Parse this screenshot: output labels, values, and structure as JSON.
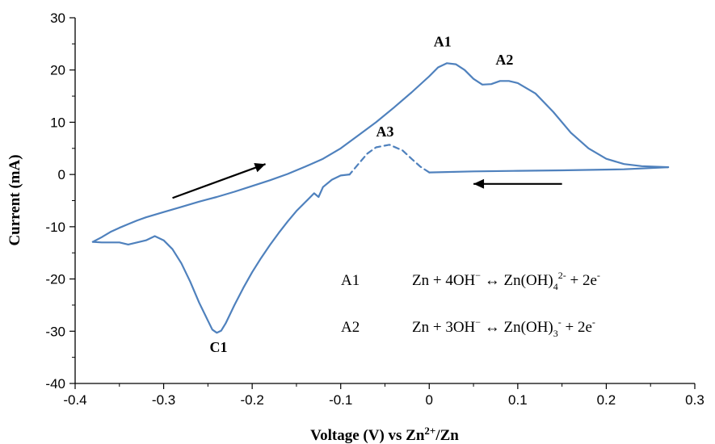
{
  "chart_data": {
    "type": "line",
    "title": "",
    "xlabel": "Voltage (V) vs Zn2+/Zn",
    "xlabel_parts": {
      "main": "Voltage (V) vs Zn",
      "sup": "2+",
      "tail": "/Zn"
    },
    "ylabel": "Current (mA)",
    "xlim": [
      -0.4,
      0.3
    ],
    "ylim": [
      -40,
      30
    ],
    "x_ticks": [
      "-0.4",
      "-0.3",
      "-0.2",
      "-0.1",
      "0",
      "0.1",
      "0.2",
      "0.3"
    ],
    "y_ticks": [
      "30",
      "20",
      "10",
      "0",
      "-10",
      "-20",
      "-30",
      "-40"
    ],
    "grid": false,
    "line_color": "#4f81bd",
    "series": [
      {
        "segment": "anodic sweep",
        "style": "solid",
        "points": [
          [
            -0.38,
            -12.9
          ],
          [
            -0.37,
            -12.0
          ],
          [
            -0.36,
            -11.0
          ],
          [
            -0.35,
            -10.2
          ],
          [
            -0.34,
            -9.5
          ],
          [
            -0.33,
            -8.8
          ],
          [
            -0.32,
            -8.2
          ],
          [
            -0.3,
            -7.2
          ],
          [
            -0.28,
            -6.2
          ],
          [
            -0.26,
            -5.2
          ],
          [
            -0.24,
            -4.3
          ],
          [
            -0.22,
            -3.3
          ],
          [
            -0.2,
            -2.2
          ],
          [
            -0.18,
            -1.1
          ],
          [
            -0.16,
            0.1
          ],
          [
            -0.14,
            1.5
          ],
          [
            -0.12,
            3.0
          ],
          [
            -0.1,
            5.0
          ],
          [
            -0.08,
            7.5
          ],
          [
            -0.06,
            10.0
          ],
          [
            -0.04,
            12.8
          ],
          [
            -0.02,
            15.7
          ],
          [
            0.0,
            18.8
          ],
          [
            0.01,
            20.5
          ],
          [
            0.02,
            21.3
          ],
          [
            0.03,
            21.1
          ],
          [
            0.04,
            20.0
          ],
          [
            0.05,
            18.3
          ],
          [
            0.06,
            17.2
          ],
          [
            0.07,
            17.3
          ],
          [
            0.08,
            17.9
          ],
          [
            0.09,
            17.9
          ],
          [
            0.1,
            17.5
          ],
          [
            0.12,
            15.5
          ],
          [
            0.14,
            12.0
          ],
          [
            0.16,
            8.0
          ],
          [
            0.18,
            5.0
          ],
          [
            0.2,
            3.0
          ],
          [
            0.22,
            2.0
          ],
          [
            0.24,
            1.6
          ],
          [
            0.27,
            1.4
          ]
        ]
      },
      {
        "segment": "cathodic sweep",
        "style": "solid",
        "points": [
          [
            0.27,
            1.4
          ],
          [
            0.22,
            1.0
          ],
          [
            0.15,
            0.8
          ],
          [
            0.1,
            0.7
          ],
          [
            0.05,
            0.6
          ],
          [
            0.0,
            0.4
          ]
        ]
      },
      {
        "segment": "A3 peak",
        "style": "dashed",
        "points": [
          [
            0.0,
            0.4
          ],
          [
            -0.01,
            1.5
          ],
          [
            -0.02,
            3.0
          ],
          [
            -0.03,
            4.6
          ],
          [
            -0.045,
            5.7
          ],
          [
            -0.06,
            5.2
          ],
          [
            -0.07,
            4.0
          ],
          [
            -0.08,
            2.0
          ],
          [
            -0.09,
            0.0
          ]
        ]
      },
      {
        "segment": "cathodic return",
        "style": "solid",
        "points": [
          [
            -0.09,
            0.0
          ],
          [
            -0.1,
            -0.2
          ],
          [
            -0.11,
            -1.0
          ],
          [
            -0.12,
            -2.4
          ],
          [
            -0.125,
            -4.3
          ],
          [
            -0.13,
            -3.6
          ],
          [
            -0.14,
            -5.3
          ],
          [
            -0.15,
            -7.0
          ],
          [
            -0.16,
            -9.0
          ],
          [
            -0.17,
            -11.2
          ],
          [
            -0.18,
            -13.5
          ],
          [
            -0.19,
            -16.0
          ],
          [
            -0.2,
            -18.7
          ],
          [
            -0.21,
            -21.7
          ],
          [
            -0.22,
            -25.0
          ],
          [
            -0.23,
            -28.5
          ],
          [
            -0.235,
            -29.9
          ],
          [
            -0.24,
            -30.3
          ],
          [
            -0.245,
            -29.7
          ],
          [
            -0.25,
            -28.0
          ],
          [
            -0.26,
            -24.5
          ],
          [
            -0.27,
            -20.5
          ],
          [
            -0.28,
            -17.0
          ],
          [
            -0.29,
            -14.3
          ],
          [
            -0.3,
            -12.6
          ],
          [
            -0.31,
            -11.8
          ],
          [
            -0.32,
            -12.6
          ],
          [
            -0.33,
            -13.0
          ],
          [
            -0.34,
            -13.4
          ],
          [
            -0.35,
            -13.0
          ],
          [
            -0.36,
            -13.0
          ],
          [
            -0.37,
            -13.0
          ],
          [
            -0.38,
            -12.9
          ]
        ]
      }
    ],
    "peak_labels": [
      {
        "text": "A1",
        "x": 0.015,
        "y": 24.5
      },
      {
        "text": "A2",
        "x": 0.085,
        "y": 21.0
      },
      {
        "text": "A3",
        "x": -0.05,
        "y": 7.3
      },
      {
        "text": "C1",
        "x": -0.238,
        "y": -34.0
      }
    ],
    "arrows": [
      {
        "from": [
          -0.29,
          -4.5
        ],
        "to": [
          -0.185,
          2.0
        ]
      },
      {
        "from": [
          0.15,
          -1.8
        ],
        "to": [
          0.05,
          -1.8
        ]
      }
    ],
    "annotations": [
      {
        "label": "A1",
        "equation_parts": [
          "Zn + 4OH",
          "−",
          " ↔ Zn(OH)",
          "4",
          "2-",
          " + 2e",
          "-"
        ]
      },
      {
        "label": "A2",
        "equation_parts": [
          "Zn + 3OH",
          "−",
          " ↔ Zn(OH)",
          "3",
          "-",
          " + 2e",
          "-"
        ]
      }
    ]
  }
}
